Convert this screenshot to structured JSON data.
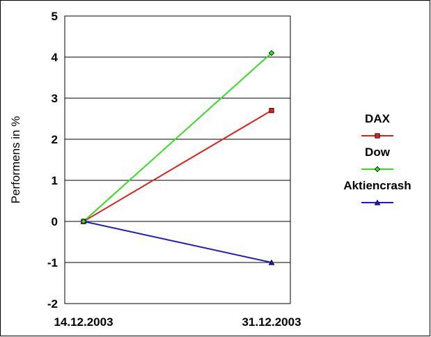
{
  "chart_data": {
    "type": "line",
    "title": "",
    "xlabel": "",
    "ylabel": "Performens in %",
    "categories": [
      "14.12.2003",
      "31.12.2003"
    ],
    "ylim": [
      -2,
      5
    ],
    "yticks": [
      5,
      4,
      3,
      2,
      1,
      0,
      -1,
      -2
    ],
    "grid": true,
    "legend_position": "right",
    "series": [
      {
        "name": "DAX",
        "values": [
          0,
          2.7
        ],
        "color": "#e0201c",
        "marker": "square"
      },
      {
        "name": "Dow",
        "values": [
          0,
          4.1
        ],
        "color": "#33dd22",
        "marker": "diamond"
      },
      {
        "name": "Aktiencrash",
        "values": [
          0,
          -1
        ],
        "color": "#1a1acc",
        "marker": "triangle"
      }
    ]
  }
}
